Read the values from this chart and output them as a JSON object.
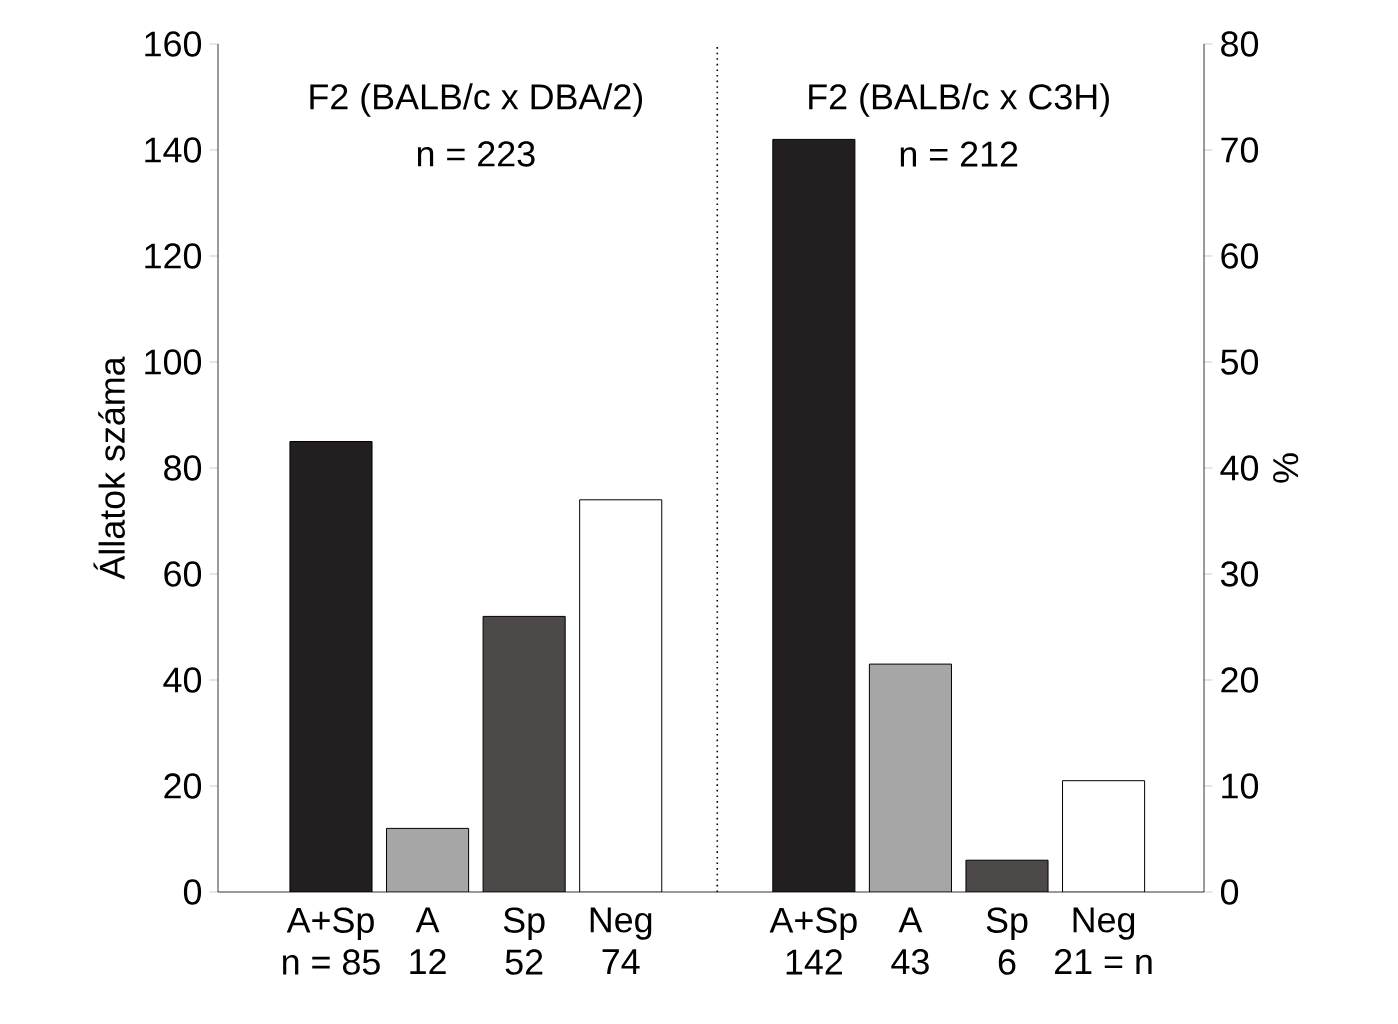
{
  "chart_data": {
    "type": "bar",
    "categories": [
      "A+Sp",
      "A",
      "Sp",
      "Neg",
      null,
      "A+Sp",
      "A",
      "Sp",
      "Neg"
    ],
    "values": [
      85,
      12,
      52,
      74,
      null,
      142,
      43,
      6,
      21
    ],
    "colors": [
      "#231f20",
      "#a6a6a6",
      "#4d4948",
      "#ffffff",
      null,
      "#231f20",
      "#a6a6a6",
      "#4d4948",
      "#ffffff"
    ],
    "value_labels": [
      "n = 85",
      "12",
      "52",
      "74",
      null,
      "142",
      "43",
      "6",
      "21 = n"
    ],
    "ylabel": "Állatok száma",
    "y2label": "%",
    "ylim": [
      0,
      160
    ],
    "yticks": [
      0,
      20,
      40,
      60,
      80,
      100,
      120,
      140,
      160
    ],
    "y2lim": [
      0,
      80
    ],
    "y2ticks": [
      0,
      10,
      20,
      30,
      40,
      50,
      60,
      70,
      80
    ],
    "annotations": [
      "F2 (BALB/c x DBA/2)",
      "n = 223",
      "F2 (BALB/c x C3H)",
      "n = 212"
    ]
  }
}
